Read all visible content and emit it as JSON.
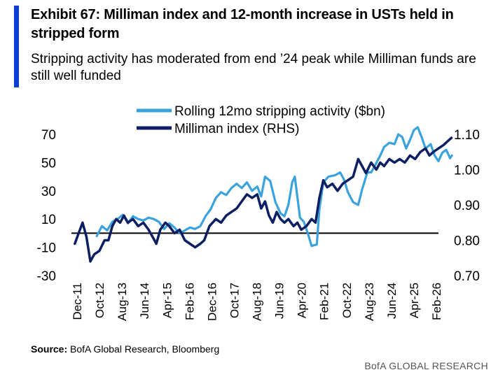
{
  "header": {
    "title": "Exhibit 67: Milliman index and 12-month increase in USTs held in stripped form",
    "subtitle": "Stripping activity has moderated from end ’24 peak while Milliman funds are still well funded"
  },
  "footer": {
    "source_label": "Source:",
    "source_text": " BofA Global Research, Bloomberg",
    "brand": "BofA GLOBAL RESEARCH"
  },
  "colors": {
    "accent": "#0a3fd8",
    "stripping": "#3aa3dd",
    "milliman": "#0d1f63",
    "zero_line": "#000000"
  },
  "chart_data": {
    "type": "line",
    "title": "",
    "xlabel": "",
    "ylabel": "",
    "legend_position": "top-center",
    "grid": false,
    "x_tick_labels": [
      "Dec-11",
      "Oct-12",
      "Aug-13",
      "Jun-14",
      "Apr-15",
      "Feb-16",
      "Dec-16",
      "Oct-17",
      "Aug-18",
      "Jun-19",
      "Apr-20",
      "Feb-21",
      "Oct-22",
      "Aug-23",
      "Jun-24",
      "Apr-25",
      "Feb-26"
    ],
    "x_range": [
      2011.92,
      2026.1
    ],
    "y_left": {
      "range": [
        -30,
        70
      ],
      "ticks": [
        -30,
        -10,
        10,
        30,
        50,
        70
      ]
    },
    "y_right": {
      "range": [
        0.7,
        1.1
      ],
      "ticks": [
        "0.70",
        "0.80",
        "0.90",
        "1.00",
        "1.10"
      ],
      "label": "RHS"
    },
    "reference_line": {
      "axis": "left",
      "value": 0
    },
    "series": [
      {
        "name": "Rolling 12mo stripping activity ($bn)",
        "axis": "left",
        "points": [
          [
            2012.9,
            -2
          ],
          [
            2013.1,
            5
          ],
          [
            2013.3,
            2
          ],
          [
            2013.5,
            8
          ],
          [
            2013.7,
            10
          ],
          [
            2013.9,
            13
          ],
          [
            2014.1,
            7
          ],
          [
            2014.3,
            12
          ],
          [
            2014.5,
            10
          ],
          [
            2014.7,
            9
          ],
          [
            2014.9,
            11
          ],
          [
            2015.1,
            10
          ],
          [
            2015.3,
            8
          ],
          [
            2015.5,
            3
          ],
          [
            2015.7,
            7
          ],
          [
            2015.9,
            4
          ],
          [
            2016.1,
            0
          ],
          [
            2016.3,
            2
          ],
          [
            2016.5,
            4
          ],
          [
            2016.7,
            3
          ],
          [
            2016.9,
            5
          ],
          [
            2017.1,
            12
          ],
          [
            2017.3,
            17
          ],
          [
            2017.5,
            25
          ],
          [
            2017.7,
            29
          ],
          [
            2017.9,
            27
          ],
          [
            2018.1,
            32
          ],
          [
            2018.3,
            35
          ],
          [
            2018.5,
            32
          ],
          [
            2018.7,
            36
          ],
          [
            2018.9,
            30
          ],
          [
            2019.1,
            33
          ],
          [
            2019.25,
            26
          ],
          [
            2019.4,
            40
          ],
          [
            2019.6,
            37
          ],
          [
            2019.8,
            22
          ],
          [
            2020.0,
            14
          ],
          [
            2020.15,
            12
          ],
          [
            2020.3,
            20
          ],
          [
            2020.45,
            36
          ],
          [
            2020.55,
            40
          ],
          [
            2020.75,
            11
          ],
          [
            2020.9,
            8
          ],
          [
            2021.05,
            0
          ],
          [
            2021.2,
            -9
          ],
          [
            2021.4,
            -8
          ],
          [
            2021.5,
            17
          ],
          [
            2021.65,
            36
          ],
          [
            2021.85,
            40
          ],
          [
            2022.1,
            41
          ],
          [
            2022.3,
            43
          ],
          [
            2022.45,
            38
          ],
          [
            2022.6,
            29
          ],
          [
            2022.8,
            22
          ],
          [
            2023.0,
            20
          ],
          [
            2023.15,
            31
          ],
          [
            2023.35,
            43
          ],
          [
            2023.5,
            43
          ],
          [
            2023.65,
            48
          ],
          [
            2023.85,
            55
          ],
          [
            2024.0,
            61
          ],
          [
            2024.2,
            64
          ],
          [
            2024.4,
            63
          ],
          [
            2024.55,
            70
          ],
          [
            2024.7,
            68
          ],
          [
            2024.85,
            60
          ],
          [
            2025.0,
            66
          ],
          [
            2025.15,
            73
          ],
          [
            2025.3,
            75
          ],
          [
            2025.45,
            68
          ],
          [
            2025.6,
            60
          ],
          [
            2025.8,
            63
          ],
          [
            2025.95,
            55
          ],
          [
            2026.1,
            51
          ],
          [
            2026.25,
            57
          ],
          [
            2026.4,
            59
          ],
          [
            2026.55,
            53
          ],
          [
            2026.62,
            55
          ]
        ]
      },
      {
        "name": "Milliman index (RHS)",
        "axis": "right",
        "points": [
          [
            2012.05,
            0.79
          ],
          [
            2012.2,
            0.82
          ],
          [
            2012.35,
            0.85
          ],
          [
            2012.5,
            0.81
          ],
          [
            2012.65,
            0.74
          ],
          [
            2012.8,
            0.76
          ],
          [
            2013.0,
            0.77
          ],
          [
            2013.2,
            0.8
          ],
          [
            2013.35,
            0.8
          ],
          [
            2013.5,
            0.84
          ],
          [
            2013.65,
            0.86
          ],
          [
            2013.8,
            0.85
          ],
          [
            2013.95,
            0.87
          ],
          [
            2014.1,
            0.85
          ],
          [
            2014.3,
            0.86
          ],
          [
            2014.5,
            0.84
          ],
          [
            2014.7,
            0.85
          ],
          [
            2014.9,
            0.83
          ],
          [
            2015.05,
            0.81
          ],
          [
            2015.2,
            0.79
          ],
          [
            2015.35,
            0.83
          ],
          [
            2015.55,
            0.85
          ],
          [
            2015.7,
            0.84
          ],
          [
            2015.9,
            0.82
          ],
          [
            2016.1,
            0.83
          ],
          [
            2016.3,
            0.8
          ],
          [
            2016.5,
            0.79
          ],
          [
            2016.7,
            0.78
          ],
          [
            2016.9,
            0.79
          ],
          [
            2017.05,
            0.8
          ],
          [
            2017.25,
            0.84
          ],
          [
            2017.5,
            0.86
          ],
          [
            2017.7,
            0.85
          ],
          [
            2017.9,
            0.87
          ],
          [
            2018.1,
            0.88
          ],
          [
            2018.3,
            0.89
          ],
          [
            2018.5,
            0.91
          ],
          [
            2018.7,
            0.93
          ],
          [
            2018.9,
            0.92
          ],
          [
            2019.1,
            0.93
          ],
          [
            2019.25,
            0.89
          ],
          [
            2019.4,
            0.91
          ],
          [
            2019.55,
            0.87
          ],
          [
            2019.7,
            0.85
          ],
          [
            2019.85,
            0.88
          ],
          [
            2020.0,
            0.86
          ],
          [
            2020.15,
            0.85
          ],
          [
            2020.3,
            0.86
          ],
          [
            2020.5,
            0.84
          ],
          [
            2020.65,
            0.85
          ],
          [
            2020.8,
            0.83
          ],
          [
            2021.0,
            0.84
          ],
          [
            2021.2,
            0.86
          ],
          [
            2021.35,
            0.85
          ],
          [
            2021.5,
            0.92
          ],
          [
            2021.65,
            0.97
          ],
          [
            2021.8,
            0.95
          ],
          [
            2022.0,
            0.96
          ],
          [
            2022.2,
            0.94
          ],
          [
            2022.4,
            0.96
          ],
          [
            2022.6,
            0.97
          ],
          [
            2022.8,
            0.98
          ],
          [
            2023.0,
            1.03
          ],
          [
            2023.15,
            1.01
          ],
          [
            2023.3,
            0.99
          ],
          [
            2023.5,
            1.02
          ],
          [
            2023.7,
            1.0
          ],
          [
            2023.85,
            1.02
          ],
          [
            2024.0,
            1.01
          ],
          [
            2024.2,
            1.03
          ],
          [
            2024.4,
            1.02
          ],
          [
            2024.6,
            1.03
          ],
          [
            2024.8,
            1.02
          ],
          [
            2025.0,
            1.04
          ],
          [
            2025.2,
            1.03
          ],
          [
            2025.4,
            1.05
          ],
          [
            2025.6,
            1.06
          ],
          [
            2025.75,
            1.04
          ],
          [
            2025.9,
            1.05
          ],
          [
            2026.1,
            1.06
          ],
          [
            2026.3,
            1.07
          ],
          [
            2026.45,
            1.08
          ],
          [
            2026.6,
            1.09
          ]
        ]
      }
    ]
  }
}
